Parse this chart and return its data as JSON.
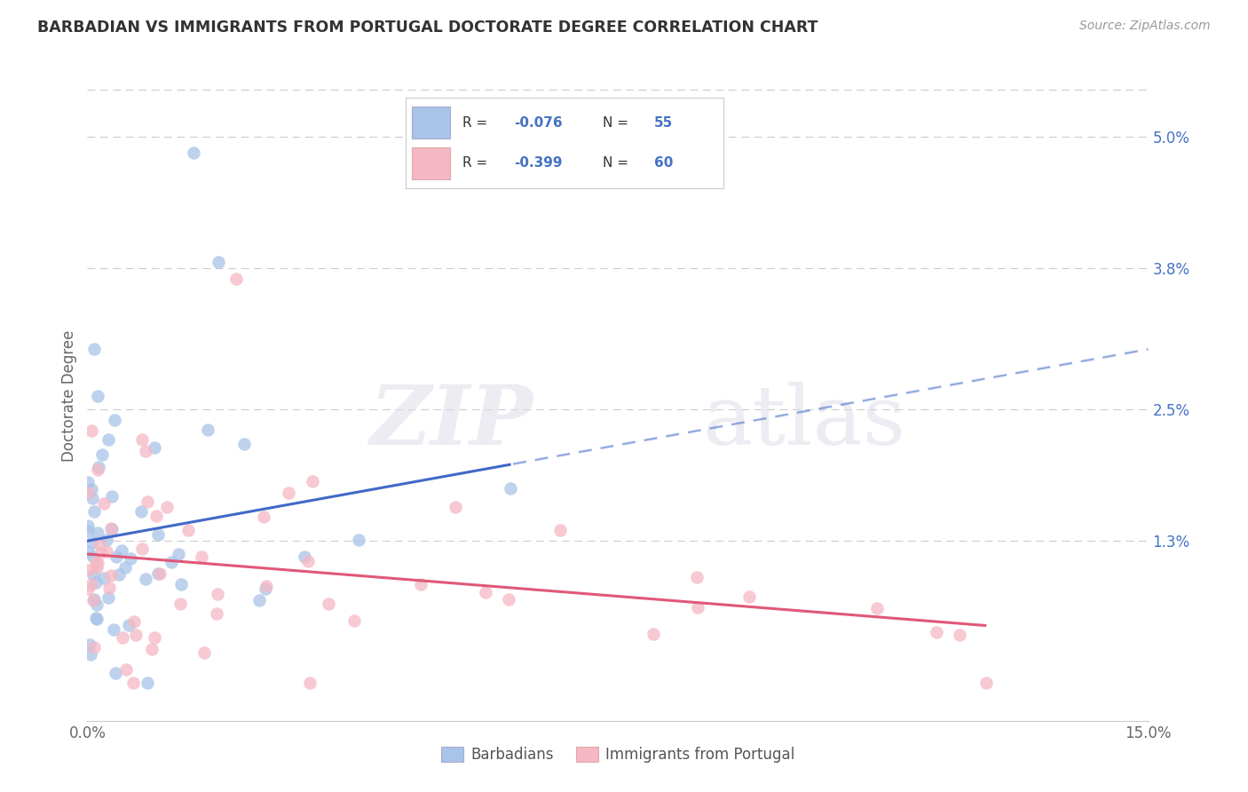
{
  "title": "BARBADIAN VS IMMIGRANTS FROM PORTUGAL DOCTORATE DEGREE CORRELATION CHART",
  "source": "Source: ZipAtlas.com",
  "ylabel": "Doctorate Degree",
  "ytick_labels": [
    "5.0%",
    "3.8%",
    "2.5%",
    "1.3%"
  ],
  "ytick_values": [
    5.0,
    3.8,
    2.5,
    1.3
  ],
  "xmin": 0.0,
  "xmax": 15.0,
  "ymin": -0.35,
  "ymax": 5.6,
  "legend_label1": "Barbadians",
  "legend_label2": "Immigrants from Portugal",
  "blue_color": "#A8C4E8",
  "pink_color": "#F5B8C4",
  "blue_line_color": "#4169C8",
  "pink_line_color": "#E05878",
  "blue_r": -0.076,
  "pink_r": -0.399,
  "watermark_zip": "ZIP",
  "watermark_atlas": "atlas",
  "background_color": "#FFFFFF",
  "grid_color": "#CCCCCC",
  "title_color": "#333333",
  "source_color": "#999999",
  "ytick_color": "#4472C4",
  "xtick_color": "#666666",
  "ylabel_color": "#666666"
}
